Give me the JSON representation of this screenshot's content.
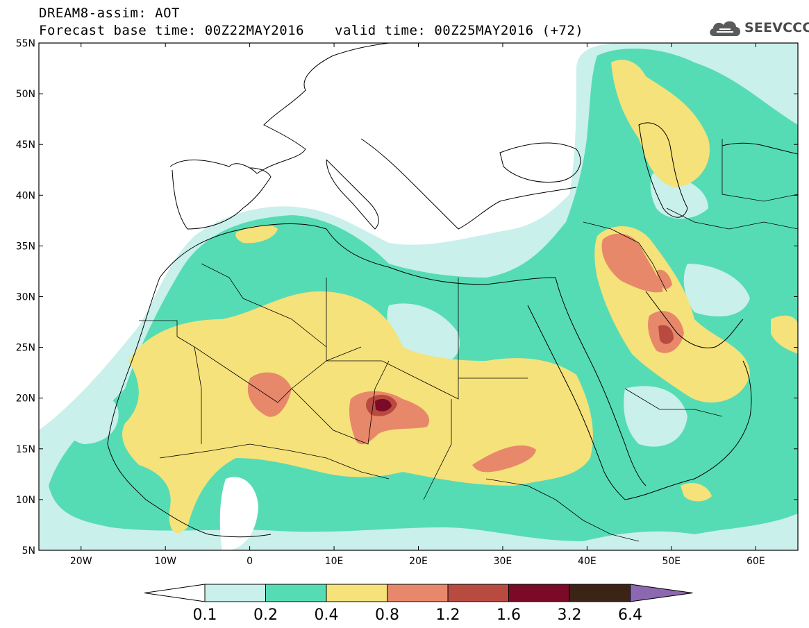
{
  "header": {
    "model_field": "DREAM8-assim: AOT",
    "forecast_base": "Forecast base time: 00Z22MAY2016",
    "valid_time": "valid time: 00Z25MAY2016 (+72)"
  },
  "logo": {
    "text": "SEEVCCC",
    "icon": "cloud-icon"
  },
  "map": {
    "lon_range": [
      -25,
      65
    ],
    "lat_range": [
      5,
      55
    ],
    "lat_ticks": [
      "5N",
      "10N",
      "15N",
      "20N",
      "25N",
      "30N",
      "35N",
      "40N",
      "45N",
      "50N",
      "55N"
    ],
    "lon_ticks": [
      "20W",
      "10W",
      "0",
      "10E",
      "20E",
      "30E",
      "40E",
      "50E",
      "60E"
    ],
    "field": "AOT",
    "max_region": "central Sahara (approx. 16E, 19N) above 1.6"
  },
  "colorbar": {
    "levels": [
      "0.1",
      "0.2",
      "0.4",
      "0.8",
      "1.2",
      "1.6",
      "3.2",
      "6.4"
    ],
    "colors": [
      "#c9f0ea",
      "#56dcb4",
      "#f5e27a",
      "#e8886a",
      "#b94a40",
      "#7a0a28",
      "#3b2415",
      "#8b68b0"
    ],
    "under_color": "#ffffff",
    "over_color": "#8b68b0"
  }
}
